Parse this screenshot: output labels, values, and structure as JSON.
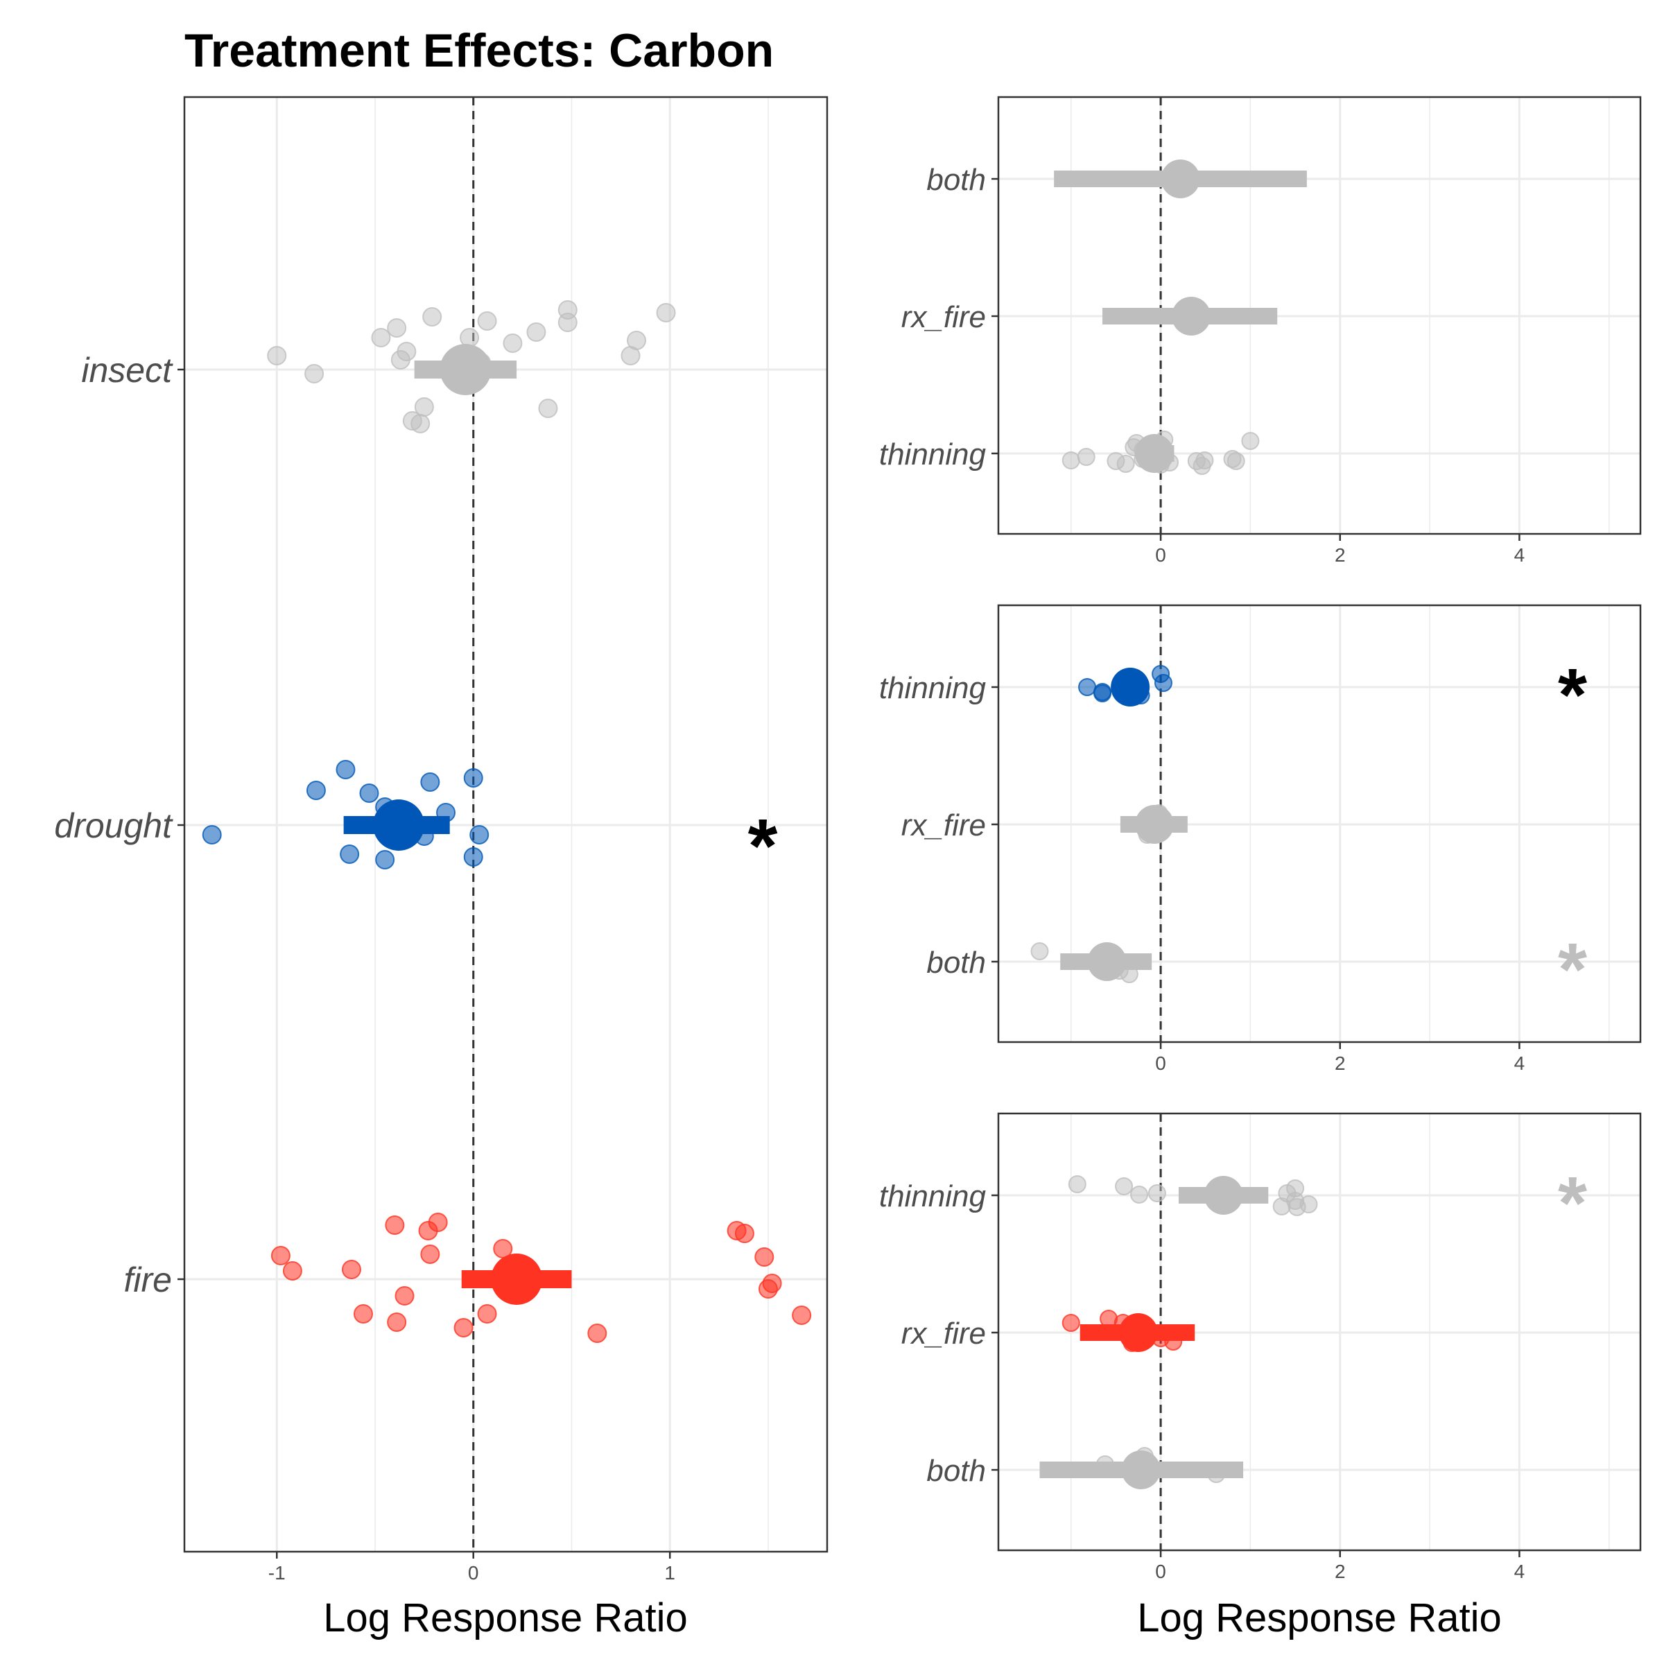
{
  "title": "Treatment Effects: Carbon",
  "colors": {
    "ns": "#bebebe",
    "drought": "#0057b7",
    "fire": "#ff3322",
    "grid": "#ebebeb",
    "zero_line": "#333333",
    "panel_border": "#333333"
  },
  "chart_data": [
    {
      "type": "scatter",
      "subtype": "forest-plot",
      "panel": "main",
      "title": "Treatment Effects: Carbon",
      "xlabel": "Log Response Ratio",
      "ylabel": "",
      "xlim": [
        -1.47,
        1.8
      ],
      "xticks": [
        -1,
        0,
        1
      ],
      "xtick_labels": [
        "-1",
        "0",
        "1"
      ],
      "zero_line": true,
      "grid": true,
      "categories": [
        "insect",
        "drought",
        "fire"
      ],
      "rows": [
        {
          "label": "insect",
          "color": "ns",
          "significant": false,
          "estimate": -0.04,
          "ci": [
            -0.3,
            0.22
          ],
          "points": [
            [
              -1.0,
              0.1
            ],
            [
              -0.81,
              -0.03
            ],
            [
              -0.47,
              0.23
            ],
            [
              -0.39,
              0.3
            ],
            [
              -0.34,
              0.13
            ],
            [
              -0.21,
              0.38
            ],
            [
              -0.37,
              0.07
            ],
            [
              -0.02,
              0.23
            ],
            [
              0.07,
              0.35
            ],
            [
              0.2,
              0.19
            ],
            [
              0.32,
              0.27
            ],
            [
              0.48,
              0.43
            ],
            [
              0.48,
              0.34
            ],
            [
              0.98,
              0.41
            ],
            [
              0.83,
              0.21
            ],
            [
              0.8,
              0.1
            ],
            [
              -0.25,
              -0.27
            ],
            [
              -0.31,
              -0.37
            ],
            [
              -0.27,
              -0.39
            ],
            [
              0.38,
              -0.28
            ],
            [
              0.0,
              0.05
            ],
            [
              0.04,
              0.05
            ]
          ]
        },
        {
          "label": "drought",
          "color": "drought",
          "significant": true,
          "estimate": -0.38,
          "ci": [
            -0.66,
            -0.12
          ],
          "points": [
            [
              -0.65,
              0.4
            ],
            [
              -0.8,
              0.25
            ],
            [
              -0.53,
              0.23
            ],
            [
              -0.22,
              0.31
            ],
            [
              0.0,
              0.34
            ],
            [
              -0.45,
              0.13
            ],
            [
              -0.14,
              0.09
            ],
            [
              -1.33,
              -0.07
            ],
            [
              -0.25,
              -0.08
            ],
            [
              0.03,
              -0.07
            ],
            [
              -0.63,
              -0.21
            ],
            [
              -0.45,
              -0.25
            ],
            [
              0.0,
              -0.23
            ]
          ]
        },
        {
          "label": "fire",
          "color": "fire",
          "significant": false,
          "estimate": 0.22,
          "ci": [
            -0.06,
            0.5
          ],
          "points": [
            [
              -0.4,
              0.39
            ],
            [
              -0.18,
              0.41
            ],
            [
              -0.23,
              0.35
            ],
            [
              -0.98,
              0.17
            ],
            [
              -0.92,
              0.06
            ],
            [
              -0.62,
              0.07
            ],
            [
              -0.22,
              0.18
            ],
            [
              0.15,
              0.22
            ],
            [
              1.34,
              0.35
            ],
            [
              1.38,
              0.33
            ],
            [
              1.48,
              0.16
            ],
            [
              1.52,
              -0.03
            ],
            [
              1.5,
              -0.07
            ],
            [
              1.67,
              -0.26
            ],
            [
              -0.35,
              -0.12
            ],
            [
              -0.56,
              -0.25
            ],
            [
              -0.39,
              -0.31
            ],
            [
              0.07,
              -0.25
            ],
            [
              -0.05,
              -0.35
            ],
            [
              0.63,
              -0.39
            ]
          ]
        }
      ]
    },
    {
      "type": "scatter",
      "subtype": "forest-plot",
      "panel": "insect",
      "xlabel": "",
      "xlim": [
        -1.81,
        5.35
      ],
      "xticks": [
        0,
        2,
        4
      ],
      "xtick_labels": [
        "0",
        "2",
        "4"
      ],
      "zero_line": true,
      "grid": true,
      "categories": [
        "both",
        "rx_fire",
        "thinning"
      ],
      "rows": [
        {
          "label": "both",
          "color": "ns",
          "significant": false,
          "estimate": 0.22,
          "ci": [
            -1.19,
            1.63
          ],
          "points": []
        },
        {
          "label": "rx_fire",
          "color": "ns",
          "significant": false,
          "estimate": 0.34,
          "ci": [
            -0.65,
            1.3
          ],
          "points": [
            [
              0.32,
              -0.06
            ]
          ]
        },
        {
          "label": "thinning",
          "color": "ns",
          "significant": false,
          "estimate": -0.07,
          "ci": [
            -0.25,
            0.15
          ],
          "points": [
            [
              -1.0,
              -0.1
            ],
            [
              -0.83,
              -0.05
            ],
            [
              -0.5,
              -0.11
            ],
            [
              -0.39,
              -0.15
            ],
            [
              -0.3,
              0.09
            ],
            [
              -0.27,
              0.15
            ],
            [
              -0.2,
              0.05
            ],
            [
              -0.2,
              -0.08
            ],
            [
              0.04,
              0.2
            ],
            [
              0.0,
              -0.16
            ],
            [
              0.1,
              -0.13
            ],
            [
              0.4,
              -0.11
            ],
            [
              0.49,
              -0.1
            ],
            [
              0.46,
              -0.18
            ],
            [
              0.8,
              -0.08
            ],
            [
              0.84,
              -0.11
            ],
            [
              1.0,
              0.18
            ]
          ]
        }
      ]
    },
    {
      "type": "scatter",
      "subtype": "forest-plot",
      "panel": "drought",
      "xlabel": "",
      "xlim": [
        -1.81,
        5.35
      ],
      "xticks": [
        0,
        2,
        4
      ],
      "xtick_labels": [
        "0",
        "2",
        "4"
      ],
      "zero_line": true,
      "grid": true,
      "categories": [
        "thinning",
        "rx_fire",
        "both"
      ],
      "rows": [
        {
          "label": "thinning",
          "color": "drought",
          "significant": true,
          "estimate": -0.34,
          "ci": [
            -0.34,
            -0.34
          ],
          "points": [
            [
              -0.82,
              0.0
            ],
            [
              -0.65,
              -0.07
            ],
            [
              -0.65,
              -0.09
            ],
            [
              -0.42,
              -0.09
            ],
            [
              -0.42,
              0.06
            ],
            [
              -0.25,
              0.05
            ],
            [
              -0.22,
              -0.12
            ],
            [
              0.0,
              0.19
            ],
            [
              0.03,
              0.06
            ],
            [
              -0.3,
              0.08
            ],
            [
              -0.38,
              -0.03
            ]
          ]
        },
        {
          "label": "rx_fire",
          "color": "ns",
          "significant": false,
          "estimate": -0.07,
          "ci": [
            -0.45,
            0.3
          ],
          "points": [
            [
              -0.02,
              0.16
            ],
            [
              -0.15,
              -0.15
            ]
          ]
        },
        {
          "label": "both",
          "color": "ns",
          "significant": true,
          "estimate": -0.6,
          "ci": [
            -1.12,
            -0.1
          ],
          "points": [
            [
              -1.35,
              0.15
            ],
            [
              -0.56,
              -0.08
            ],
            [
              -0.53,
              -0.1
            ],
            [
              -0.35,
              -0.18
            ],
            [
              -0.46,
              -0.13
            ]
          ]
        }
      ]
    },
    {
      "type": "scatter",
      "subtype": "forest-plot",
      "panel": "fire",
      "xlabel": "Log Response Ratio",
      "xlim": [
        -1.81,
        5.35
      ],
      "xticks": [
        0,
        2,
        4
      ],
      "xtick_labels": [
        "0",
        "2",
        "4"
      ],
      "zero_line": true,
      "grid": true,
      "categories": [
        "thinning",
        "rx_fire",
        "both"
      ],
      "rows": [
        {
          "label": "thinning",
          "color": "ns",
          "significant": true,
          "estimate": 0.7,
          "ci": [
            0.2,
            1.2
          ],
          "points": [
            [
              -0.93,
              0.16
            ],
            [
              -0.41,
              0.13
            ],
            [
              -0.24,
              0.01
            ],
            [
              -0.04,
              0.03
            ],
            [
              1.41,
              0.03
            ],
            [
              1.5,
              0.1
            ],
            [
              1.5,
              -0.08
            ],
            [
              1.65,
              -0.13
            ],
            [
              1.35,
              -0.16
            ],
            [
              1.52,
              -0.17
            ]
          ]
        },
        {
          "label": "rx_fire",
          "color": "fire",
          "significant": false,
          "estimate": -0.25,
          "ci": [
            -0.9,
            0.38
          ],
          "points": [
            [
              -1.0,
              0.14
            ],
            [
              -0.58,
              0.2
            ],
            [
              -0.42,
              0.14
            ],
            [
              -0.32,
              -0.15
            ],
            [
              0.0,
              -0.08
            ],
            [
              0.14,
              -0.13
            ]
          ]
        },
        {
          "label": "both",
          "color": "ns",
          "significant": false,
          "estimate": -0.22,
          "ci": [
            -1.35,
            0.92
          ],
          "points": [
            [
              -0.18,
              0.2
            ],
            [
              -0.62,
              0.08
            ],
            [
              0.62,
              -0.06
            ]
          ]
        }
      ]
    }
  ]
}
